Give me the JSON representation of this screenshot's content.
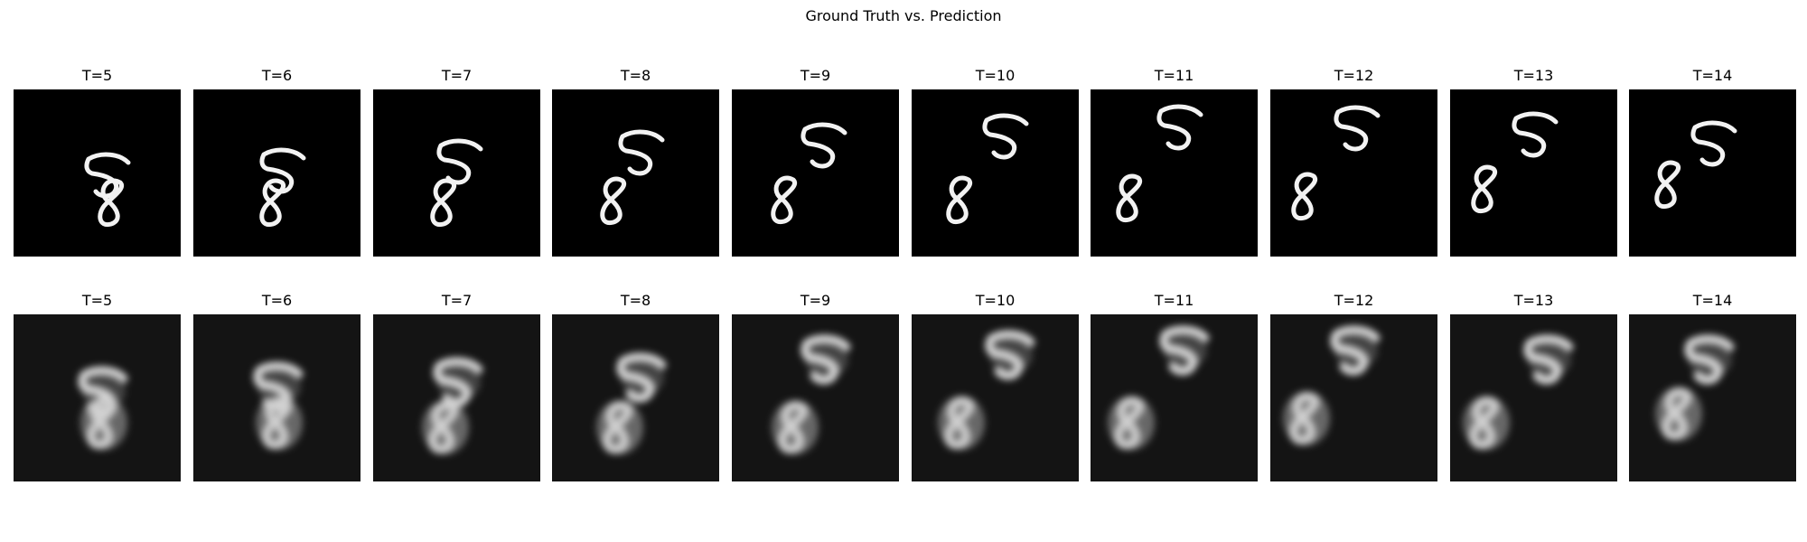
{
  "figure": {
    "title": "Ground Truth vs. Prediction"
  },
  "rows": [
    {
      "name": "ground-truth",
      "kind": "clean",
      "frames": [
        {
          "title": "T=5",
          "five": [
            105,
            95
          ],
          "eight": [
            110,
            125
          ]
        },
        {
          "title": "T=6",
          "five": [
            100,
            90
          ],
          "eight": [
            90,
            125
          ]
        },
        {
          "title": "T=7",
          "five": [
            97,
            80
          ],
          "eight": [
            80,
            125
          ]
        },
        {
          "title": "T=8",
          "five": [
            100,
            70
          ],
          "eight": [
            70,
            123
          ]
        },
        {
          "title": "T=9",
          "five": [
            103,
            62
          ],
          "eight": [
            60,
            122
          ]
        },
        {
          "title": "T=10",
          "five": [
            105,
            52
          ],
          "eight": [
            55,
            122
          ]
        },
        {
          "title": "T=11",
          "five": [
            100,
            42
          ],
          "eight": [
            45,
            120
          ]
        },
        {
          "title": "T=12",
          "five": [
            97,
            43
          ],
          "eight": [
            40,
            118
          ]
        },
        {
          "title": "T=13",
          "five": [
            95,
            50
          ],
          "eight": [
            40,
            110
          ]
        },
        {
          "title": "T=14",
          "five": [
            95,
            60
          ],
          "eight": [
            45,
            105
          ]
        }
      ]
    },
    {
      "name": "prediction",
      "kind": "blurry",
      "frames": [
        {
          "title": "T=5",
          "five": [
            100,
            85
          ],
          "eight": [
            100,
            120
          ]
        },
        {
          "title": "T=6",
          "five": [
            95,
            80
          ],
          "eight": [
            95,
            120
          ]
        },
        {
          "title": "T=7",
          "five": [
            95,
            75
          ],
          "eight": [
            80,
            125
          ]
        },
        {
          "title": "T=8",
          "five": [
            100,
            70
          ],
          "eight": [
            75,
            125
          ]
        },
        {
          "title": "T=9",
          "five": [
            105,
            50
          ],
          "eight": [
            70,
            125
          ]
        },
        {
          "title": "T=10",
          "five": [
            110,
            45
          ],
          "eight": [
            55,
            120
          ]
        },
        {
          "title": "T=11",
          "five": [
            105,
            40
          ],
          "eight": [
            45,
            120
          ]
        },
        {
          "title": "T=12",
          "five": [
            95,
            40
          ],
          "eight": [
            40,
            115
          ]
        },
        {
          "title": "T=13",
          "five": [
            110,
            50
          ],
          "eight": [
            40,
            120
          ]
        },
        {
          "title": "T=14",
          "five": [
            90,
            50
          ],
          "eight": [
            55,
            110
          ]
        }
      ]
    }
  ]
}
